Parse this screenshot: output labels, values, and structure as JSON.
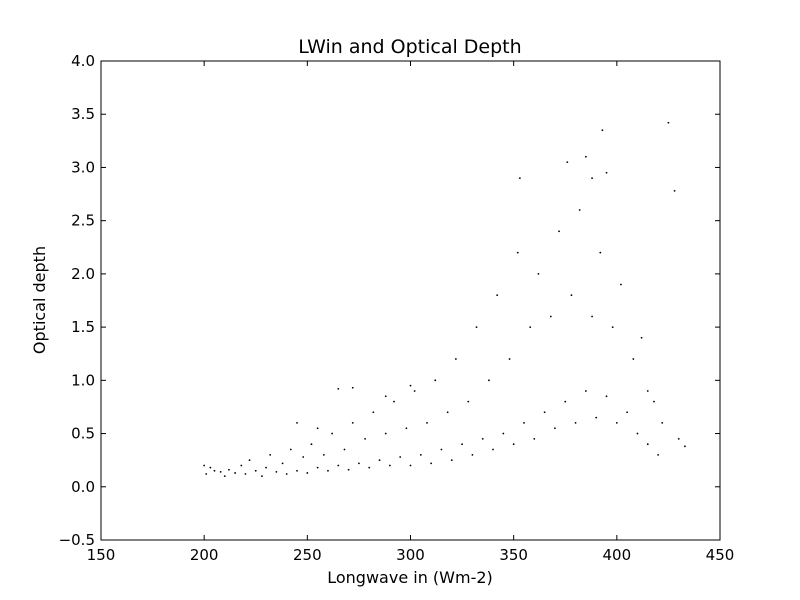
{
  "chart_data": {
    "type": "scatter",
    "title": "LWin and Optical Depth",
    "xlabel": "Longwave in (Wm-2)",
    "ylabel": "Optical depth",
    "xlim": [
      150,
      450
    ],
    "ylim": [
      -0.5,
      4.0
    ],
    "xticks": [
      150,
      200,
      250,
      300,
      350,
      400,
      450
    ],
    "yticks": [
      -0.5,
      0.0,
      0.5,
      1.0,
      1.5,
      2.0,
      2.5,
      3.0,
      3.5,
      4.0
    ],
    "xtick_labels": [
      "150",
      "200",
      "250",
      "300",
      "350",
      "400",
      "450"
    ],
    "ytick_labels": [
      "−0.5",
      "0.0",
      "0.5",
      "1.0",
      "1.5",
      "2.0",
      "2.5",
      "3.0",
      "3.5",
      "4.0"
    ],
    "grid": false,
    "legend": "none",
    "marker_color": "#000000",
    "series": [
      {
        "points": [
          [
            200,
            0.2
          ],
          [
            201,
            0.12
          ],
          [
            203,
            0.18
          ],
          [
            205,
            0.15
          ],
          [
            208,
            0.14
          ],
          [
            210,
            0.1
          ],
          [
            212,
            0.16
          ],
          [
            215,
            0.13
          ],
          [
            218,
            0.2
          ],
          [
            220,
            0.12
          ],
          [
            222,
            0.25
          ],
          [
            225,
            0.15
          ],
          [
            228,
            0.1
          ],
          [
            230,
            0.18
          ],
          [
            232,
            0.3
          ],
          [
            235,
            0.14
          ],
          [
            238,
            0.22
          ],
          [
            240,
            0.12
          ],
          [
            242,
            0.35
          ],
          [
            245,
            0.15
          ],
          [
            248,
            0.28
          ],
          [
            250,
            0.13
          ],
          [
            252,
            0.4
          ],
          [
            255,
            0.18
          ],
          [
            258,
            0.3
          ],
          [
            260,
            0.15
          ],
          [
            262,
            0.5
          ],
          [
            265,
            0.2
          ],
          [
            268,
            0.35
          ],
          [
            270,
            0.16
          ],
          [
            272,
            0.6
          ],
          [
            275,
            0.22
          ],
          [
            278,
            0.45
          ],
          [
            280,
            0.18
          ],
          [
            282,
            0.7
          ],
          [
            285,
            0.25
          ],
          [
            288,
            0.5
          ],
          [
            290,
            0.2
          ],
          [
            292,
            0.8
          ],
          [
            295,
            0.28
          ],
          [
            298,
            0.55
          ],
          [
            300,
            0.2
          ],
          [
            302,
            0.9
          ],
          [
            305,
            0.3
          ],
          [
            308,
            0.6
          ],
          [
            310,
            0.22
          ],
          [
            312,
            1.0
          ],
          [
            315,
            0.35
          ],
          [
            318,
            0.7
          ],
          [
            320,
            0.25
          ],
          [
            322,
            1.2
          ],
          [
            325,
            0.4
          ],
          [
            328,
            0.8
          ],
          [
            330,
            0.3
          ],
          [
            332,
            1.5
          ],
          [
            335,
            0.45
          ],
          [
            338,
            1.0
          ],
          [
            340,
            0.35
          ],
          [
            342,
            1.8
          ],
          [
            345,
            0.5
          ],
          [
            348,
            1.2
          ],
          [
            350,
            0.4
          ],
          [
            352,
            2.2
          ],
          [
            355,
            0.6
          ],
          [
            358,
            1.5
          ],
          [
            360,
            0.45
          ],
          [
            362,
            2.0
          ],
          [
            365,
            0.7
          ],
          [
            368,
            1.6
          ],
          [
            370,
            0.55
          ],
          [
            372,
            2.4
          ],
          [
            375,
            0.8
          ],
          [
            378,
            1.8
          ],
          [
            380,
            0.6
          ],
          [
            382,
            2.6
          ],
          [
            385,
            0.9
          ],
          [
            388,
            1.6
          ],
          [
            390,
            0.65
          ],
          [
            392,
            2.2
          ],
          [
            395,
            0.85
          ],
          [
            398,
            1.5
          ],
          [
            400,
            0.6
          ],
          [
            402,
            1.9
          ],
          [
            405,
            0.7
          ],
          [
            408,
            1.2
          ],
          [
            410,
            0.5
          ],
          [
            412,
            1.4
          ],
          [
            415,
            0.4
          ],
          [
            418,
            0.8
          ],
          [
            420,
            0.3
          ],
          [
            353,
            2.9
          ],
          [
            385,
            3.1
          ],
          [
            393,
            3.35
          ],
          [
            425,
            3.42
          ],
          [
            428,
            2.78
          ],
          [
            430,
            0.45
          ],
          [
            433,
            0.38
          ],
          [
            415,
            0.9
          ],
          [
            422,
            0.6
          ],
          [
            395,
            2.95
          ],
          [
            376,
            3.05
          ],
          [
            388,
            2.9
          ],
          [
            265,
            0.92
          ],
          [
            272,
            0.93
          ],
          [
            288,
            0.85
          ],
          [
            300,
            0.95
          ],
          [
            245,
            0.6
          ],
          [
            255,
            0.55
          ]
        ]
      }
    ]
  }
}
